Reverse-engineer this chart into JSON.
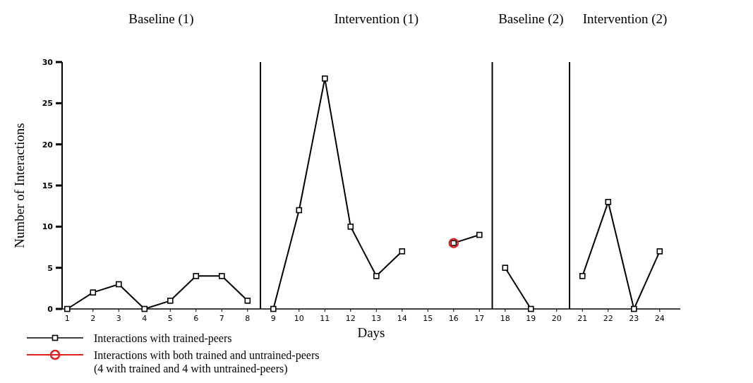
{
  "chart_data": {
    "type": "line",
    "xlabel": "Days",
    "ylabel": "Number of Interactions",
    "annotations": [
      "Baseline (1)",
      "Intervention (1)",
      "Baseline (2)",
      "Intervention (2)"
    ],
    "xlim": [
      0.8,
      24.8
    ],
    "xticks": [
      1,
      2,
      3,
      4,
      5,
      6,
      7,
      8,
      9,
      10,
      11,
      12,
      13,
      14,
      15,
      16,
      17,
      18,
      19,
      20,
      21,
      22,
      23,
      24
    ],
    "ylim": [
      0,
      30
    ],
    "yticks": [
      0,
      5,
      10,
      15,
      20,
      25,
      30
    ],
    "ref_lines": [
      {
        "axis": "x",
        "value": 8.5
      },
      {
        "axis": "x",
        "value": 17.5
      },
      {
        "axis": "x",
        "value": 20.5
      }
    ],
    "legend": "bottom left",
    "grid": false,
    "series": [
      {
        "name": "Interactions with trained-peers",
        "color": "#000000",
        "marker": "square",
        "x": [
          1,
          2,
          3,
          4,
          5,
          6,
          7,
          8,
          9,
          10,
          11,
          12,
          13,
          14,
          15,
          16,
          17,
          18,
          19,
          21,
          22,
          23,
          24
        ],
        "values": [
          0,
          2,
          3,
          0,
          1,
          4,
          4,
          1,
          0,
          12,
          28,
          10,
          4,
          7,
          null,
          8,
          9,
          5,
          0,
          4,
          13,
          0,
          7
        ]
      },
      {
        "name": "Interactions with both trained and untrained-peers (4 with trained and 4 with untrained-peers)",
        "type": "scatter",
        "color": "#e0201b",
        "marker": "circle",
        "x": [
          16
        ],
        "values": [
          8
        ]
      }
    ]
  }
}
